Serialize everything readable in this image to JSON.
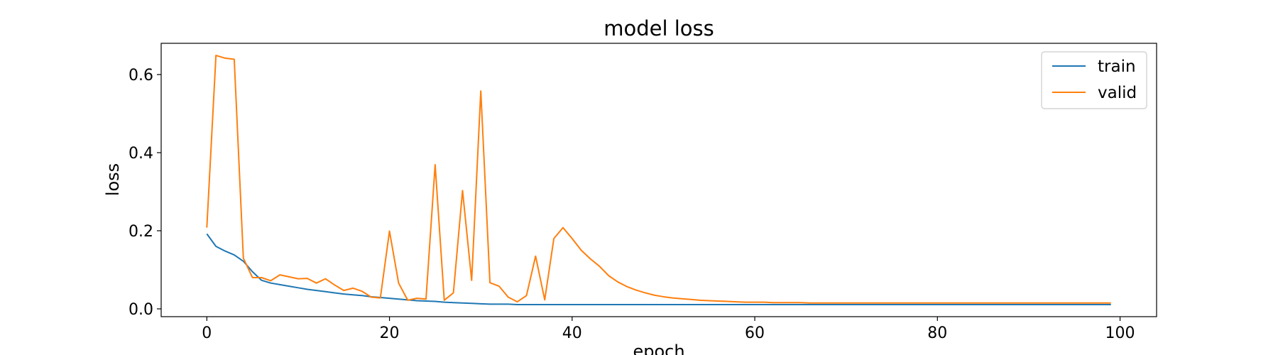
{
  "chart_data": {
    "type": "line",
    "title": "model loss",
    "xlabel": "epoch",
    "ylabel": "loss",
    "xlim": [
      -5,
      104
    ],
    "ylim": [
      -0.02,
      0.68
    ],
    "xticks": [
      0,
      20,
      40,
      60,
      80,
      100
    ],
    "yticks": [
      0.0,
      0.2,
      0.4,
      0.6
    ],
    "xtick_labels": [
      "0",
      "20",
      "40",
      "60",
      "80",
      "100"
    ],
    "ytick_labels": [
      "0.0",
      "0.2",
      "0.4",
      "0.6"
    ],
    "grid": false,
    "legend_position": "top-right",
    "series": [
      {
        "name": "train",
        "color": "#1f77b4",
        "values": [
          0.192,
          0.16,
          0.148,
          0.138,
          0.122,
          0.095,
          0.073,
          0.066,
          0.062,
          0.058,
          0.054,
          0.05,
          0.047,
          0.044,
          0.041,
          0.038,
          0.036,
          0.034,
          0.031,
          0.029,
          0.027,
          0.025,
          0.023,
          0.021,
          0.02,
          0.019,
          0.017,
          0.016,
          0.015,
          0.014,
          0.013,
          0.012,
          0.012,
          0.012,
          0.011,
          0.011,
          0.011,
          0.011,
          0.011,
          0.011,
          0.011,
          0.011,
          0.011,
          0.011,
          0.011,
          0.011,
          0.011,
          0.011,
          0.011,
          0.011,
          0.011,
          0.011,
          0.011,
          0.011,
          0.011,
          0.011,
          0.011,
          0.011,
          0.011,
          0.011,
          0.011,
          0.011,
          0.011,
          0.011,
          0.011,
          0.011,
          0.011,
          0.011,
          0.011,
          0.011,
          0.011,
          0.011,
          0.011,
          0.011,
          0.011,
          0.011,
          0.011,
          0.011,
          0.011,
          0.011,
          0.011,
          0.011,
          0.011,
          0.011,
          0.011,
          0.011,
          0.011,
          0.011,
          0.011,
          0.011,
          0.011,
          0.011,
          0.011,
          0.011,
          0.011,
          0.011,
          0.011,
          0.011,
          0.011,
          0.011
        ]
      },
      {
        "name": "valid",
        "color": "#ff7f0e",
        "values": [
          0.208,
          0.649,
          0.642,
          0.639,
          0.13,
          0.08,
          0.08,
          0.072,
          0.087,
          0.082,
          0.077,
          0.078,
          0.066,
          0.077,
          0.061,
          0.047,
          0.053,
          0.045,
          0.03,
          0.028,
          0.199,
          0.066,
          0.022,
          0.027,
          0.025,
          0.369,
          0.022,
          0.041,
          0.303,
          0.073,
          0.558,
          0.067,
          0.058,
          0.03,
          0.018,
          0.034,
          0.135,
          0.023,
          0.18,
          0.208,
          0.18,
          0.15,
          0.128,
          0.109,
          0.085,
          0.069,
          0.057,
          0.048,
          0.041,
          0.035,
          0.031,
          0.028,
          0.026,
          0.024,
          0.022,
          0.021,
          0.02,
          0.019,
          0.018,
          0.017,
          0.017,
          0.017,
          0.016,
          0.016,
          0.016,
          0.016,
          0.015,
          0.015,
          0.015,
          0.015,
          0.015,
          0.015,
          0.015,
          0.015,
          0.015,
          0.015,
          0.015,
          0.015,
          0.015,
          0.015,
          0.015,
          0.015,
          0.015,
          0.015,
          0.015,
          0.015,
          0.015,
          0.015,
          0.015,
          0.015,
          0.015,
          0.015,
          0.015,
          0.015,
          0.015,
          0.015,
          0.015,
          0.015,
          0.015,
          0.015
        ]
      }
    ]
  }
}
